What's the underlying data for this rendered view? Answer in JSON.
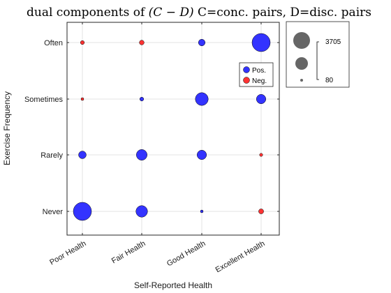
{
  "chart_data": {
    "type": "scatter",
    "title_prefix": "dual components of ",
    "title_math": "(C − D)",
    "title_suffix": " C=conc. pairs, D=disc. pairs",
    "xlabel": "Self-Reported Health",
    "ylabel": "Exercise Frequency",
    "categories_x": [
      "Poor Health",
      "Fair Health",
      "Good Health",
      "Excellent Health"
    ],
    "categories_y": [
      "Never",
      "Rarely",
      "Sometimes",
      "Often"
    ],
    "grid": true,
    "legend": {
      "position": "right-inside",
      "entries": [
        {
          "label": "Pos.",
          "color": "#3333ff"
        },
        {
          "label": "Neg.",
          "color": "#ff3333"
        }
      ]
    },
    "size_legend": {
      "position": "outside-right",
      "max_label": "3705",
      "min_label": "80",
      "max_value": 3705,
      "min_value": 80
    },
    "colors": {
      "positive": "#3333ff",
      "negative": "#ff3333"
    },
    "points": [
      {
        "x": "Poor Health",
        "y": "Never",
        "value": 3705,
        "sign": "positive"
      },
      {
        "x": "Fair Health",
        "y": "Never",
        "value": 1500,
        "sign": "positive"
      },
      {
        "x": "Good Health",
        "y": "Never",
        "value": 80,
        "sign": "positive"
      },
      {
        "x": "Excellent Health",
        "y": "Never",
        "value": 280,
        "sign": "negative"
      },
      {
        "x": "Poor Health",
        "y": "Rarely",
        "value": 650,
        "sign": "positive"
      },
      {
        "x": "Fair Health",
        "y": "Rarely",
        "value": 1300,
        "sign": "positive"
      },
      {
        "x": "Good Health",
        "y": "Rarely",
        "value": 1000,
        "sign": "positive"
      },
      {
        "x": "Excellent Health",
        "y": "Rarely",
        "value": 110,
        "sign": "negative"
      },
      {
        "x": "Poor Health",
        "y": "Sometimes",
        "value": 80,
        "sign": "negative"
      },
      {
        "x": "Fair Health",
        "y": "Sometimes",
        "value": 170,
        "sign": "positive"
      },
      {
        "x": "Good Health",
        "y": "Sometimes",
        "value": 1850,
        "sign": "positive"
      },
      {
        "x": "Excellent Health",
        "y": "Sometimes",
        "value": 1000,
        "sign": "positive"
      },
      {
        "x": "Poor Health",
        "y": "Often",
        "value": 170,
        "sign": "negative"
      },
      {
        "x": "Fair Health",
        "y": "Often",
        "value": 250,
        "sign": "negative"
      },
      {
        "x": "Good Health",
        "y": "Often",
        "value": 500,
        "sign": "positive"
      },
      {
        "x": "Excellent Health",
        "y": "Often",
        "value": 3705,
        "sign": "positive"
      }
    ]
  }
}
